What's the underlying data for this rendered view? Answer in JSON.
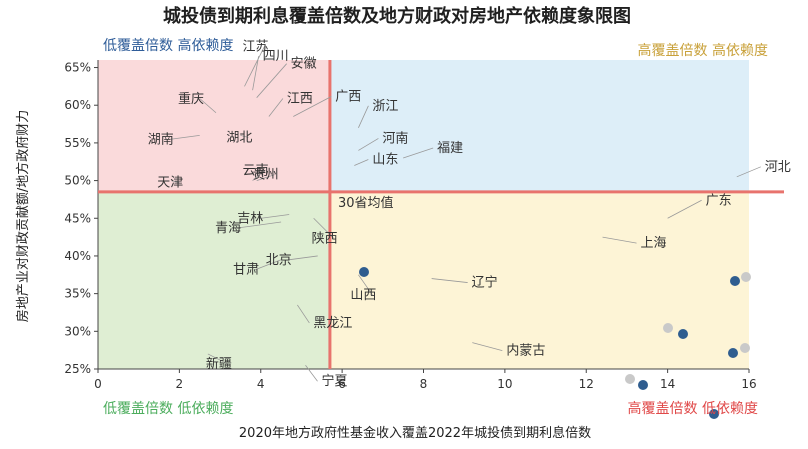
{
  "chart_data": {
    "type": "scatter",
    "title": "城投债到期利息覆盖倍数及地方财政对房地产依赖度象限图",
    "xlabel": "2020年地方政府性基金收入覆盖2022年城投债到期利息倍数",
    "ylabel": "房地产业对财政贡献额/地方政府财力",
    "xlim": [
      0,
      16
    ],
    "ylim": [
      25,
      66
    ],
    "xticks": [
      "0",
      "2",
      "4",
      "6",
      "8",
      "10",
      "12",
      "14",
      "16"
    ],
    "yticks": [
      "25%",
      "30%",
      "35%",
      "40%",
      "45%",
      "50%",
      "55%",
      "60%",
      "65%"
    ],
    "divider": {
      "x": 5.7,
      "y": 48.5
    },
    "average_label": "30省均值",
    "quadrant_labels": {
      "top_left": "低覆盖倍数 高依赖度",
      "top_right": "高覆盖倍数 高依赖度",
      "bottom_left": "低覆盖倍数 低依赖度",
      "bottom_right": "高覆盖倍数 低依赖度"
    },
    "colors": {
      "top_left": "#fadadb",
      "top_right": "#ddeef8",
      "bottom_left": "#dfeed3",
      "bottom_right": "#fdf4d6",
      "divider": "#e8736d",
      "point": "#2f5d8f",
      "title": "#1f1f1f",
      "q_top_left": "#2f5d99",
      "q_top_right": "#c9a13a",
      "q_bottom_left": "#4cad5d",
      "q_bottom_right": "#e04848"
    },
    "provinces": [
      {
        "name": "江苏",
        "x": 3.6,
        "y": 62.5
      },
      {
        "name": "四川",
        "x": 3.8,
        "y": 62
      },
      {
        "name": "安徽",
        "x": 3.9,
        "y": 61
      },
      {
        "name": "江西",
        "x": 4.2,
        "y": 58.5
      },
      {
        "name": "广西",
        "x": 4.8,
        "y": 58.5
      },
      {
        "name": "重庆",
        "x": 2.9,
        "y": 59
      },
      {
        "name": "湖南",
        "x": 2.5,
        "y": 56
      },
      {
        "name": "湖北",
        "x": 3.5,
        "y": 56
      },
      {
        "name": "浙江",
        "x": 6.4,
        "y": 57
      },
      {
        "name": "河南",
        "x": 6.4,
        "y": 54
      },
      {
        "name": "福建",
        "x": 7.5,
        "y": 53
      },
      {
        "name": "山东",
        "x": 6.3,
        "y": 52
      },
      {
        "name": "河北",
        "x": 15.7,
        "y": 50.5
      },
      {
        "name": "天津",
        "x": 1.8,
        "y": 50
      },
      {
        "name": "云南",
        "x": 3.8,
        "y": 50
      },
      {
        "name": "贵州",
        "x": 3.9,
        "y": 50
      },
      {
        "name": "广东",
        "x": 14,
        "y": 45
      },
      {
        "name": "吉林",
        "x": 4.7,
        "y": 45.5
      },
      {
        "name": "青海",
        "x": 4.5,
        "y": 44.5
      },
      {
        "name": "陕西",
        "x": 5.3,
        "y": 45
      },
      {
        "name": "上海",
        "x": 12.4,
        "y": 42.5
      },
      {
        "name": "甘肃",
        "x": 4.5,
        "y": 39.5
      },
      {
        "name": "北京",
        "x": 5.4,
        "y": 40
      },
      {
        "name": "黑龙江",
        "x": 4.9,
        "y": 33.5
      },
      {
        "name": "辽宁",
        "x": 8.2,
        "y": 37
      },
      {
        "name": "山西",
        "x": 6.4,
        "y": 37.5
      },
      {
        "name": "内蒙古",
        "x": 9.2,
        "y": 28.5
      },
      {
        "name": "新疆",
        "x": 2.7,
        "y": 27
      },
      {
        "name": "宁夏",
        "x": 5.1,
        "y": 25.5
      }
    ]
  }
}
